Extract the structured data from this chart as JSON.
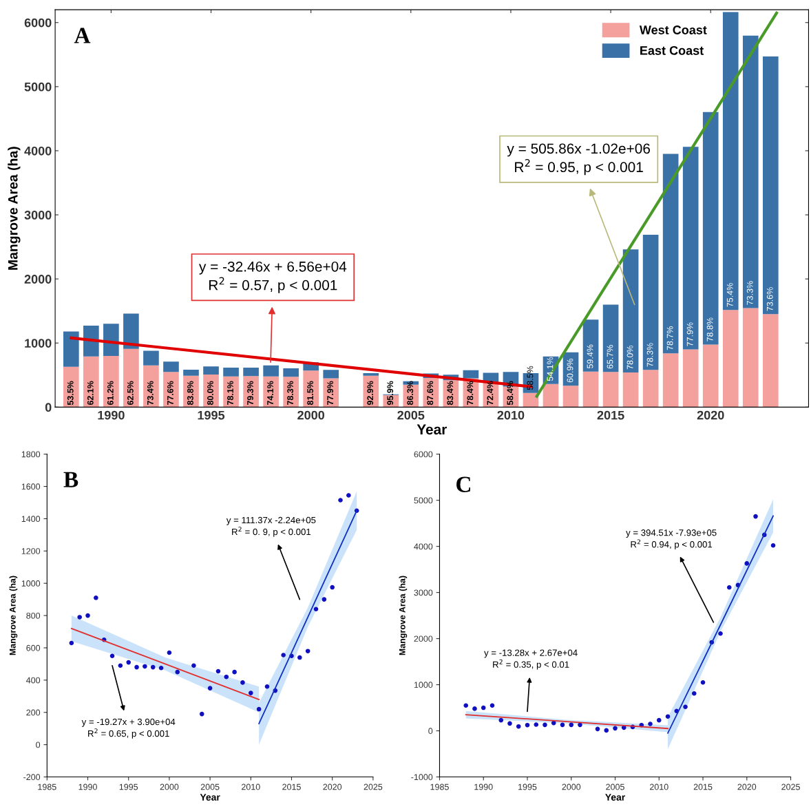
{
  "chart_data": [
    {
      "type": "bar",
      "stacked": true,
      "xlabel": "Year",
      "ylabel": "Mangrove Area (ha)",
      "legend": "top right",
      "x": [
        1988,
        1989,
        1990,
        1991,
        1992,
        1993,
        1994,
        1995,
        1996,
        1997,
        1998,
        1999,
        2000,
        2001,
        2003,
        2004,
        2005,
        2006,
        2007,
        2008,
        2009,
        2010,
        2011,
        2012,
        2013,
        2014,
        2015,
        2016,
        2017,
        2018,
        2019,
        2020,
        2021,
        2022,
        2023
      ],
      "xlim": [
        1987.2,
        2024.9
      ],
      "xticks": [
        1990,
        1995,
        2000,
        2005,
        2010,
        2015,
        2020
      ],
      "ylim": [
        0,
        6200
      ],
      "yticks": [
        0,
        1000,
        2000,
        3000,
        4000,
        5000,
        6000
      ],
      "series": [
        {
          "name": "West Coast",
          "color": "#f4a09c",
          "values": [
            630,
            790,
            800,
            910,
            650,
            550,
            490,
            510,
            480,
            485,
            480,
            475,
            570,
            450,
            490,
            190,
            350,
            455,
            420,
            450,
            385,
            320,
            220,
            360,
            335,
            555,
            550,
            540,
            580,
            840,
            900,
            975,
            1515,
            1545,
            1450
          ]
        },
        {
          "name": "East Coast",
          "color": "#3a72a8",
          "values": [
            550,
            480,
            500,
            550,
            230,
            160,
            95,
            125,
            135,
            130,
            170,
            130,
            130,
            130,
            40,
            10,
            55,
            70,
            85,
            125,
            150,
            230,
            310,
            430,
            520,
            810,
            1050,
            1920,
            2110,
            3110,
            3160,
            3630,
            4650,
            4250,
            4020
          ]
        },
        {
          "type": "line",
          "color": "#e00000",
          "x": [
            1988,
            2011
          ],
          "values": [
            1080,
            320
          ]
        },
        {
          "type": "line",
          "color": "#4a9a2a",
          "x": [
            2011.3,
            2023.3
          ],
          "values": [
            170,
            6150
          ]
        }
      ],
      "annotations": [
        "A",
        "y = -32.46x + 6.56e+04\nR$^{2}$ = 0.57, p < 0.001",
        "y = 505.86x -1.02e+06\nR$^{2}$ = 0.95, p < 0.001",
        {
          "text": "53.5%",
          "x": 1988,
          "y": 0
        },
        {
          "text": "62.1%",
          "x": 1989,
          "y": 0
        },
        {
          "text": "61.2%",
          "x": 1990,
          "y": 0
        },
        {
          "text": "62.5%",
          "x": 1991,
          "y": 0
        },
        {
          "text": "73.4%",
          "x": 1992,
          "y": 0
        },
        {
          "text": "77.6%",
          "x": 1993,
          "y": 0
        },
        {
          "text": "83.8%",
          "x": 1994,
          "y": 0
        },
        {
          "text": "80.0%",
          "x": 1995,
          "y": 0
        },
        {
          "text": "78.1%",
          "x": 1996,
          "y": 0
        },
        {
          "text": "79.3%",
          "x": 1997,
          "y": 0
        },
        {
          "text": "74.1%",
          "x": 1998,
          "y": 0
        },
        {
          "text": "78.3%",
          "x": 1999,
          "y": 0
        },
        {
          "text": "81.5%",
          "x": 2000,
          "y": 0
        },
        {
          "text": "77.9%",
          "x": 2001,
          "y": 0
        },
        {
          "text": "92.9%",
          "x": 2003,
          "y": 0
        },
        {
          "text": "95.9%",
          "x": 2004,
          "y": 0
        },
        {
          "text": "86.3%",
          "x": 2005,
          "y": 0
        },
        {
          "text": "87.6%",
          "x": 2006,
          "y": 0
        },
        {
          "text": "83.4%",
          "x": 2007,
          "y": 0
        },
        {
          "text": "78.4%",
          "x": 2008,
          "y": 0
        },
        {
          "text": "72.4%",
          "x": 2009,
          "y": 0
        },
        {
          "text": "58.4%",
          "x": 2010,
          "y": 0
        },
        {
          "text": "58.5%",
          "x": 2011,
          "y": 220
        },
        {
          "text": "54.1%",
          "x": 2012,
          "y": 360
        },
        {
          "text": "60.9%",
          "x": 2013,
          "y": 335
        },
        {
          "text": "59.4%",
          "x": 2014,
          "y": 555
        },
        {
          "text": "65.7%",
          "x": 2015,
          "y": 550
        },
        {
          "text": "78.0%",
          "x": 2016,
          "y": 540
        },
        {
          "text": "78.3%",
          "x": 2017,
          "y": 580
        },
        {
          "text": "78.7%",
          "x": 2018,
          "y": 840
        },
        {
          "text": "77.9%",
          "x": 2019,
          "y": 900
        },
        {
          "text": "78.8%",
          "x": 2020,
          "y": 975
        },
        {
          "text": "75.4%",
          "x": 2021,
          "y": 1515
        },
        {
          "text": "73.3%",
          "x": 2022,
          "y": 1545
        },
        {
          "text": "73.6%",
          "x": 2023,
          "y": 1450
        }
      ]
    },
    {
      "type": "scatter",
      "xlabel": "Year",
      "ylabel": "Mangrove Area (ha)",
      "xlim": [
        1985,
        2025
      ],
      "xticks": [
        1985,
        1990,
        1995,
        2000,
        2005,
        2010,
        2015,
        2020,
        2025
      ],
      "ylim": [
        -200,
        1800
      ],
      "yticks": [
        -200,
        0,
        200,
        400,
        600,
        800,
        1000,
        1200,
        1400,
        1600,
        1800
      ],
      "series": [
        {
          "color": "#1010c0",
          "marker": "circle",
          "x": [
            1988,
            1989,
            1990,
            1991,
            1992,
            1993,
            1994,
            1995,
            1996,
            1997,
            1998,
            1999,
            2000,
            2001,
            2003,
            2004,
            2005,
            2006,
            2007,
            2008,
            2009,
            2010,
            2011,
            2012,
            2013,
            2014,
            2015,
            2016,
            2017,
            2018,
            2019,
            2020,
            2021,
            2022,
            2023
          ],
          "values": [
            630,
            790,
            800,
            910,
            650,
            550,
            490,
            510,
            480,
            485,
            480,
            475,
            570,
            450,
            490,
            190,
            350,
            455,
            420,
            450,
            385,
            320,
            220,
            360,
            335,
            555,
            550,
            540,
            580,
            840,
            900,
            975,
            1515,
            1545,
            1450
          ]
        },
        {
          "type": "line",
          "color": "#e03030",
          "x": [
            1988,
            1999.5,
            2011
          ],
          "values": [
            720,
            500,
            280
          ],
          "lower": [
            640,
            460,
            200
          ],
          "upper": [
            800,
            540,
            360
          ]
        },
        {
          "type": "line",
          "color": "#1030c0",
          "x": [
            2011,
            2017,
            2023
          ],
          "values": [
            130,
            790,
            1450
          ],
          "lower": [
            0,
            730,
            1330
          ],
          "upper": [
            260,
            850,
            1570
          ]
        }
      ],
      "annotations": [
        "B",
        "y = 111.37x -2.24e+05\nR$^{2}$ = 0. 9, p < 0.001",
        "y = -19.27x + 3.90e+04\nR$^{2}$ = 0.65, p < 0.001"
      ]
    },
    {
      "type": "scatter",
      "xlabel": "Year",
      "ylabel": "Mangrove Area (ha)",
      "xlim": [
        1985,
        2025
      ],
      "xticks": [
        1985,
        1990,
        1995,
        2000,
        2005,
        2010,
        2015,
        2020,
        2025
      ],
      "ylim": [
        -1000,
        6000
      ],
      "yticks": [
        -1000,
        0,
        1000,
        2000,
        3000,
        4000,
        5000,
        6000
      ],
      "series": [
        {
          "color": "#1010c0",
          "marker": "circle",
          "x": [
            1988,
            1989,
            1990,
            1991,
            1992,
            1993,
            1994,
            1995,
            1996,
            1997,
            1998,
            1999,
            2000,
            2001,
            2003,
            2004,
            2005,
            2006,
            2007,
            2008,
            2009,
            2010,
            2011,
            2012,
            2013,
            2014,
            2015,
            2016,
            2017,
            2018,
            2019,
            2020,
            2021,
            2022,
            2023
          ],
          "values": [
            550,
            480,
            500,
            550,
            230,
            160,
            95,
            125,
            135,
            130,
            170,
            130,
            130,
            130,
            40,
            10,
            55,
            70,
            85,
            125,
            150,
            230,
            310,
            430,
            520,
            810,
            1050,
            1920,
            2110,
            3110,
            3160,
            3630,
            4650,
            4250,
            4020
          ]
        },
        {
          "type": "line",
          "color": "#e03030",
          "x": [
            1988,
            1999.5,
            2011
          ],
          "values": [
            350,
            200,
            50
          ],
          "lower": [
            270,
            160,
            -30
          ],
          "upper": [
            430,
            240,
            120
          ]
        },
        {
          "type": "line",
          "color": "#1030c0",
          "x": [
            2011,
            2017,
            2023
          ],
          "values": [
            -50,
            2300,
            4660
          ],
          "lower": [
            -400,
            2150,
            4300
          ],
          "upper": [
            300,
            2460,
            5020
          ]
        }
      ],
      "annotations": [
        "C",
        "y = 394.51x -7.93e+05\nR$^{2}$ = 0.94, p < 0.001",
        "y = -13.28x + 2.67e+04\nR$^{2}$ = 0.35, p < 0.01"
      ]
    }
  ]
}
